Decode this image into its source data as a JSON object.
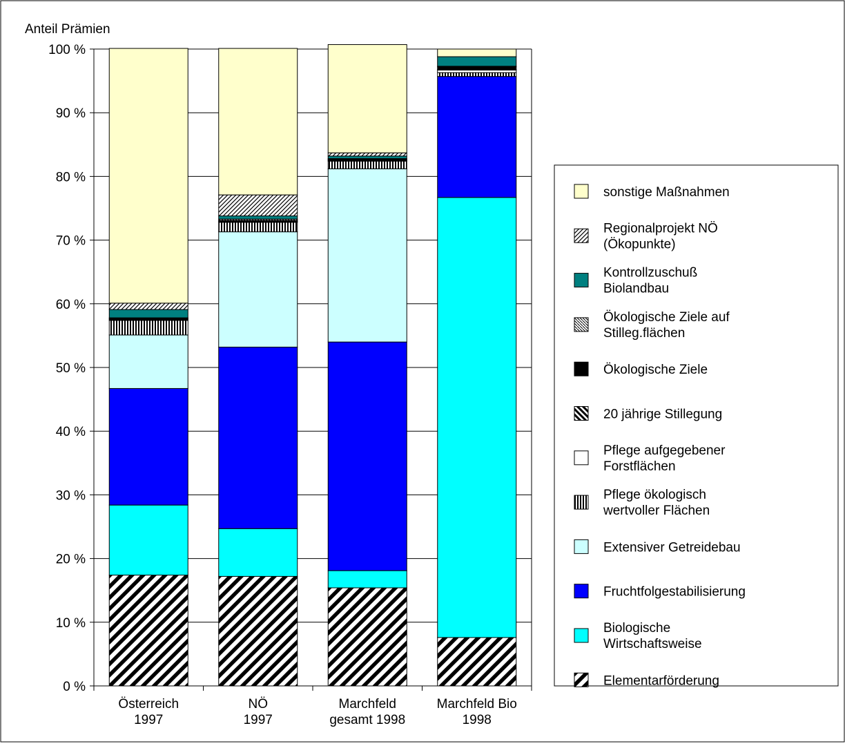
{
  "chart_data": {
    "type": "bar",
    "stacked": true,
    "ylabel": "Anteil Prämien",
    "ylim": [
      0,
      100
    ],
    "yticks": [
      "0 %",
      "10 %",
      "20 %",
      "30 %",
      "40 %",
      "50 %",
      "60 %",
      "70 %",
      "80 %",
      "90 %",
      "100 %"
    ],
    "grid": true,
    "legend_position": "right",
    "categories": [
      [
        "Österreich",
        "1997"
      ],
      [
        "NÖ",
        "1997"
      ],
      [
        "Marchfeld",
        "gesamt 1998"
      ],
      [
        "Marchfeld Bio",
        "1998"
      ]
    ],
    "series": [
      {
        "name": [
          "Elementarförderung"
        ],
        "color": "#ffffff",
        "pattern": "wide-diagonal",
        "values": [
          17.4,
          17.2,
          15.4,
          7.6
        ]
      },
      {
        "name": [
          "Biologische",
          "Wirtschaftsweise"
        ],
        "color": "#00ffff",
        "pattern": "solid",
        "values": [
          11.0,
          7.5,
          2.7,
          69.1
        ]
      },
      {
        "name": [
          "Fruchtfolgestabilisierung"
        ],
        "color": "#0000ff",
        "pattern": "solid",
        "values": [
          18.3,
          28.5,
          35.9,
          19.0
        ]
      },
      {
        "name": [
          "Extensiver Getreidebau"
        ],
        "color": "#ccffff",
        "pattern": "solid",
        "values": [
          8.4,
          18.1,
          27.2,
          0
        ]
      },
      {
        "name": [
          "Pflege ökologisch",
          "wertvoller Flächen"
        ],
        "color": "#000000",
        "pattern": "vertical-stripes",
        "values": [
          2.3,
          1.5,
          1.2,
          0.6
        ]
      },
      {
        "name": [
          "Pflege aufgegebener",
          "Forstflächen"
        ],
        "color": "#ffffff",
        "pattern": "solid",
        "values": [
          0.1,
          0.1,
          0.1,
          0.4
        ]
      },
      {
        "name": [
          "20 jährige Stillegung"
        ],
        "color": "#000000",
        "pattern": "bold-diagonal",
        "values": [
          0.1,
          0.1,
          0.1,
          0.1
        ]
      },
      {
        "name": [
          "Ökologische Ziele"
        ],
        "color": "#000000",
        "pattern": "solid",
        "values": [
          0.1,
          0.1,
          0.1,
          0.4
        ]
      },
      {
        "name": [
          "Ökologische Ziele auf",
          "Stilleg.flächen"
        ],
        "color": "#ffffff",
        "pattern": "cross-diagonal",
        "values": [
          0.1,
          0.2,
          0.1,
          0.1
        ]
      },
      {
        "name": [
          "Kontrollzuschuß",
          "Biolandbau"
        ],
        "color": "#008080",
        "pattern": "solid",
        "values": [
          1.3,
          0.5,
          0.4,
          1.5
        ]
      },
      {
        "name": [
          "Regionalprojekt NÖ",
          "(Ökopunkte)"
        ],
        "color": "#ffffff",
        "pattern": "fine-diagonal",
        "values": [
          1.0,
          3.3,
          0.5,
          0.0
        ]
      },
      {
        "name": [
          "sonstige Maßnahmen"
        ],
        "color": "#ffffcc",
        "pattern": "solid",
        "values": [
          40.0,
          23.0,
          17.0,
          1.2
        ]
      }
    ]
  }
}
